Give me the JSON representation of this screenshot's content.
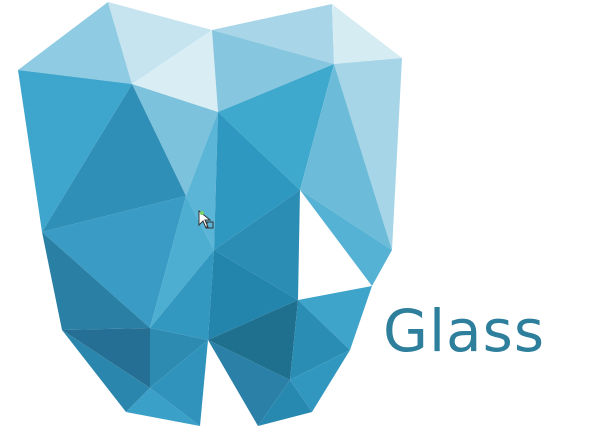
{
  "logo": {
    "wordmark": "Glass",
    "colors": {
      "text": "#2e7f9c",
      "facet_light": "#d6ecf3",
      "facet_mid": "#3da8cc",
      "facet_dark": "#1f6f8f"
    },
    "cursor_icon": "cursor-with-selection-icon"
  }
}
